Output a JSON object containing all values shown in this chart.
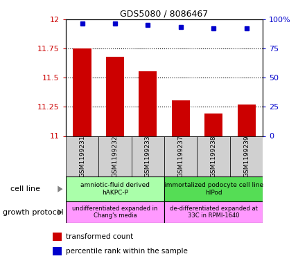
{
  "title": "GDS5080 / 8086467",
  "samples": [
    "GSM1199231",
    "GSM1199232",
    "GSM1199233",
    "GSM1199237",
    "GSM1199238",
    "GSM1199239"
  ],
  "transformed_counts": [
    11.75,
    11.68,
    11.555,
    11.305,
    11.19,
    11.27
  ],
  "percentile_ranks": [
    96,
    96,
    95,
    93,
    92,
    92
  ],
  "ylim_left": [
    11,
    12
  ],
  "ylim_right": [
    0,
    100
  ],
  "yticks_left": [
    11,
    11.25,
    11.5,
    11.75,
    12
  ],
  "yticks_right": [
    0,
    25,
    50,
    75,
    100
  ],
  "cell_line_groups": [
    {
      "label": "amniotic-fluid derived\nhAKPC-P",
      "color": "#aaffaa",
      "start": 0,
      "end": 3
    },
    {
      "label": "immortalized podocyte cell line\nhIPod",
      "color": "#55dd55",
      "start": 3,
      "end": 6
    }
  ],
  "growth_protocol_groups": [
    {
      "label": "undifferentiated expanded in\nChang's media",
      "color": "#ff99ff",
      "start": 0,
      "end": 3
    },
    {
      "label": "de-differentiated expanded at\n33C in RPMI-1640",
      "color": "#ff99ff",
      "start": 3,
      "end": 6
    }
  ],
  "bar_color": "#cc0000",
  "dot_color": "#0000cc",
  "left_tick_color": "#cc0000",
  "right_tick_color": "#0000cc",
  "gray_bg": "#d0d0d0",
  "legend_items": [
    {
      "color": "#cc0000",
      "label": "transformed count"
    },
    {
      "color": "#0000cc",
      "label": "percentile rank within the sample"
    }
  ]
}
